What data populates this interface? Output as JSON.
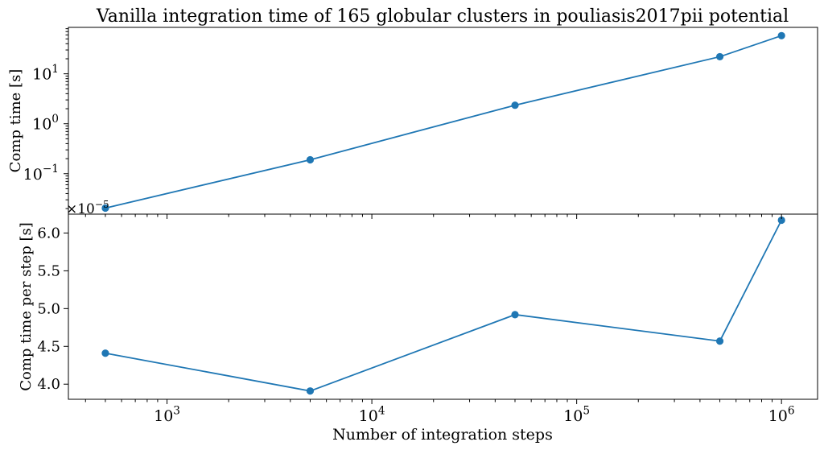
{
  "chart_data": {
    "type": "line",
    "title": "Vanilla integration time of 165 globular clusters in pouliasis2017pii potential",
    "xlabel": "Number of integration steps",
    "xscale": "log",
    "xlim": [
      330,
      1500000
    ],
    "x": [
      500,
      5000,
      50000,
      500000,
      1000000
    ],
    "x_tick_labels": [
      {
        "value": 1000,
        "base": "10",
        "exp": "3"
      },
      {
        "value": 10000,
        "base": "10",
        "exp": "4"
      },
      {
        "value": 100000,
        "base": "10",
        "exp": "5"
      },
      {
        "value": 1000000,
        "base": "10",
        "exp": "6"
      }
    ],
    "color": "#1f77b4",
    "panels": [
      {
        "id": "top",
        "ylabel": "Comp time [s]",
        "yscale": "log",
        "ylim": [
          0.0155,
          85
        ],
        "series": [
          {
            "values": [
              0.0205,
              0.19,
              2.35,
              22.0,
              58.0
            ]
          }
        ],
        "y_tick_labels": [
          {
            "value": 0.1,
            "base": "10",
            "exp": "−1"
          },
          {
            "value": 1,
            "base": "10",
            "exp": "0"
          },
          {
            "value": 10,
            "base": "10",
            "exp": "1"
          }
        ]
      },
      {
        "id": "bottom",
        "ylabel": "Comp time per step [s]",
        "yscale": "linear",
        "ylim": [
          3.8,
          6.25
        ],
        "offset_label": {
          "prefix": "×10",
          "exp": "−5"
        },
        "series": [
          {
            "values": [
              4.41,
              3.91,
              4.92,
              4.57,
              6.17
            ]
          }
        ],
        "y_tick_labels": [
          "4.0",
          "4.5",
          "5.0",
          "5.5",
          "6.0"
        ]
      }
    ]
  }
}
